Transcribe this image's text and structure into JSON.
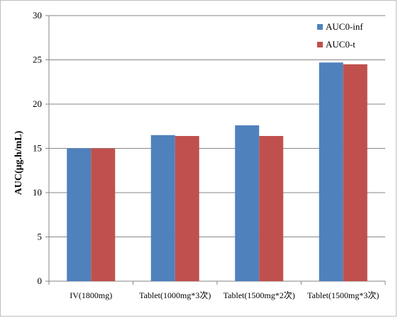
{
  "chart_data": {
    "type": "bar",
    "categories": [
      "IV(1800mg)",
      "Tablet(1000mg*3次)",
      "Tablet(1500mg*2次)",
      "Tablet(1500mg*3次)"
    ],
    "series": [
      {
        "name": "AUC0-inf",
        "color": "#4f81bd",
        "values": [
          15.0,
          16.5,
          17.6,
          24.7
        ]
      },
      {
        "name": "AUC0-t",
        "color": "#c0504d",
        "values": [
          15.0,
          16.4,
          16.4,
          24.5
        ]
      }
    ],
    "title": "",
    "xlabel": "",
    "ylabel": "AUC(μg.h/mL)",
    "ylim": [
      0,
      30
    ],
    "yticks": [
      0,
      5,
      10,
      15,
      20,
      25,
      30
    ],
    "grid": true,
    "legend_position": "top-right"
  }
}
